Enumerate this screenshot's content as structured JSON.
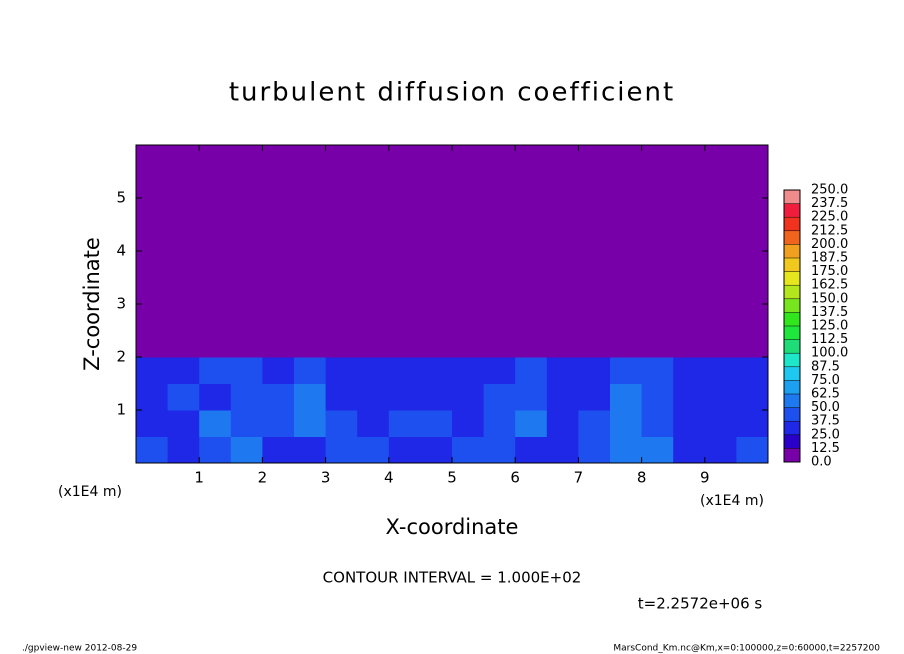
{
  "chart_data": {
    "type": "heatmap",
    "title": "turbulent diffusion coefficient",
    "x_label": "X-coordinate",
    "y_label": "Z-coordinate",
    "x_unit": "(x1E4 m)",
    "y_unit": "(x1E4 m)",
    "xlim": [
      0,
      10
    ],
    "ylim": [
      0,
      6
    ],
    "xticks": [
      1,
      2,
      3,
      4,
      5,
      6,
      7,
      8,
      9
    ],
    "yticks": [
      1,
      2,
      3,
      4,
      5
    ],
    "field": {
      "values": [
        [
          40,
          35,
          45,
          50,
          35,
          30,
          40,
          45,
          35,
          30,
          40,
          45,
          35,
          30,
          40,
          55,
          50,
          35,
          30,
          40
        ],
        [
          30,
          35,
          50,
          40,
          45,
          50,
          45,
          30,
          45,
          40,
          35,
          45,
          50,
          35,
          45,
          50,
          40,
          35,
          30,
          35
        ],
        [
          35,
          40,
          30,
          45,
          40,
          55,
          35,
          35,
          30,
          35,
          30,
          40,
          45,
          30,
          35,
          55,
          45,
          30,
          35,
          30
        ],
        [
          30,
          25,
          40,
          45,
          35,
          45,
          25,
          30,
          35,
          30,
          30,
          35,
          40,
          35,
          30,
          45,
          40,
          30,
          25,
          25
        ],
        [
          0,
          0,
          0,
          0,
          0,
          0,
          0,
          0,
          0,
          0,
          0,
          0,
          0,
          0,
          0,
          0,
          0,
          0,
          0,
          0
        ],
        [
          0,
          0,
          0,
          0,
          0,
          0,
          0,
          0,
          0,
          0,
          0,
          0,
          0,
          0,
          0,
          0,
          0,
          0,
          0,
          0
        ],
        [
          0,
          0,
          0,
          0,
          0,
          0,
          0,
          0,
          0,
          0,
          0,
          0,
          0,
          0,
          0,
          0,
          0,
          0,
          0,
          0
        ],
        [
          0,
          0,
          0,
          0,
          0,
          0,
          0,
          0,
          0,
          0,
          0,
          0,
          0,
          0,
          0,
          0,
          0,
          0,
          0,
          0
        ],
        [
          0,
          0,
          0,
          0,
          0,
          0,
          0,
          0,
          0,
          0,
          0,
          0,
          0,
          0,
          0,
          0,
          0,
          0,
          0,
          0
        ],
        [
          0,
          0,
          0,
          0,
          0,
          0,
          0,
          0,
          0,
          0,
          0,
          0,
          0,
          0,
          0,
          0,
          0,
          0,
          0,
          0
        ],
        [
          0,
          0,
          0,
          0,
          0,
          0,
          0,
          0,
          0,
          0,
          0,
          0,
          0,
          0,
          0,
          0,
          0,
          0,
          0,
          0
        ],
        [
          0,
          0,
          0,
          0,
          0,
          0,
          0,
          0,
          0,
          0,
          0,
          0,
          0,
          0,
          0,
          0,
          0,
          0,
          0,
          0
        ]
      ]
    },
    "levels": [
      {
        "value": 0,
        "label": "0.0"
      },
      {
        "value": 12.5,
        "label": "12.5"
      },
      {
        "value": 25,
        "label": "25.0"
      },
      {
        "value": 37.5,
        "label": "37.5"
      },
      {
        "value": 50,
        "label": "50.0"
      },
      {
        "value": 62.5,
        "label": "62.5"
      },
      {
        "value": 75,
        "label": "75.0"
      },
      {
        "value": 87.5,
        "label": "87.5"
      },
      {
        "value": 100,
        "label": "100.0"
      },
      {
        "value": 112.5,
        "label": "112.5"
      },
      {
        "value": 125,
        "label": "125.0"
      },
      {
        "value": 137.5,
        "label": "137.5"
      },
      {
        "value": 150,
        "label": "150.0"
      },
      {
        "value": 162.5,
        "label": "162.5"
      },
      {
        "value": 175,
        "label": "175.0"
      },
      {
        "value": 187.5,
        "label": "187.5"
      },
      {
        "value": 200,
        "label": "200.0"
      },
      {
        "value": 212.5,
        "label": "212.5"
      },
      {
        "value": 225,
        "label": "225.0"
      },
      {
        "value": 237.5,
        "label": "237.5"
      },
      {
        "value": 250,
        "label": "250.0"
      }
    ],
    "level_colors": [
      "#7800a8",
      "#2800c8",
      "#1e28e6",
      "#1e50f0",
      "#1e78f0",
      "#1ea0f0",
      "#1ec8f0",
      "#1ee6c8",
      "#1edc78",
      "#1ee63c",
      "#32e61e",
      "#78e61e",
      "#b4e61e",
      "#e6e61e",
      "#f0c81e",
      "#f0a01e",
      "#f0641e",
      "#f0321e",
      "#f01e3c",
      "#f08c8c"
    ],
    "contour_interval": "CONTOUR INTERVAL = 1.000E+02",
    "time_label": "t=2.2572e+06 s",
    "footer_left": "./gpview-new  2012-08-29",
    "footer_right": "MarsCond_Km.nc@Km,x=0:100000,z=0:60000,t=2257200"
  }
}
